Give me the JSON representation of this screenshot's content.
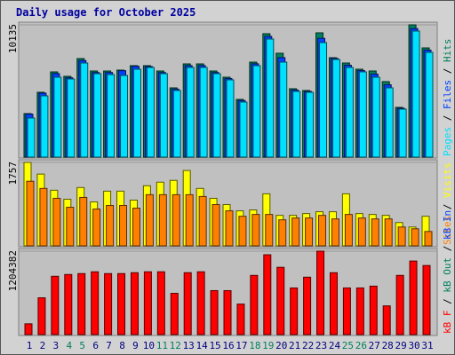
{
  "chart_data": [
    {
      "type": "bar",
      "title": "Daily usage for October 2025",
      "ylim": [
        0,
        10135
      ],
      "yticks": [
        10135
      ],
      "legend_separator": " / ",
      "series": [
        {
          "name": "Hits",
          "color": "#00805c",
          "values": [
            3333,
            4966,
            6530,
            6190,
            7551,
            6598,
            6598,
            6666,
            7006,
            7006,
            6598,
            5306,
            7142,
            7142,
            6598,
            6122,
            4421,
            7278,
            9455,
            7959,
            5238,
            5102,
            9523,
            7618,
            7210,
            6734,
            6598,
            5782,
            3809,
            10135,
            8367
          ]
        },
        {
          "name": "Files",
          "color": "#0040ff",
          "values": [
            3290,
            4900,
            6400,
            6080,
            7400,
            6480,
            6480,
            6620,
            6960,
            6940,
            6480,
            5210,
            7010,
            7010,
            6480,
            6020,
            4330,
            7150,
            9250,
            7620,
            5140,
            5030,
            9100,
            7560,
            7040,
            6630,
            6360,
            5540,
            3740,
            9850,
            8200
          ]
        },
        {
          "name": "Pages",
          "color": "#00e0ff",
          "values": [
            2993,
            4693,
            6122,
            5986,
            7210,
            6394,
            6326,
            6258,
            6734,
            6870,
            6394,
            5102,
            6870,
            6870,
            6394,
            5918,
            4217,
            7006,
            9047,
            7278,
            5034,
            4966,
            8775,
            7482,
            6870,
            6530,
            6122,
            5306,
            3673,
            9659,
            8027
          ]
        }
      ]
    },
    {
      "type": "bar",
      "ylim": [
        0,
        1757
      ],
      "yticks": [
        1757
      ],
      "legend_separator": " / ",
      "series": [
        {
          "name": "Visits",
          "color": "#ffff00",
          "values": [
            1757,
            1511,
            1171,
            982,
            1228,
            926,
            1152,
            1152,
            963,
            1266,
            1341,
            1379,
            1587,
            1209,
            1001,
            869,
            737,
            756,
            1096,
            642,
            642,
            680,
            718,
            718,
            1096,
            680,
            661,
            642,
            491,
            397,
            623
          ]
        },
        {
          "name": "Sites",
          "color": "#ff8000",
          "values": [
            1360,
            1209,
            1001,
            812,
            1020,
            775,
            850,
            850,
            793,
            1077,
            1077,
            1077,
            1077,
            1039,
            869,
            737,
            623,
            661,
            661,
            548,
            586,
            586,
            642,
            567,
            661,
            586,
            567,
            567,
            397,
            359,
            302
          ]
        }
      ]
    },
    {
      "type": "bar",
      "ylim": [
        0,
        1204382
      ],
      "yticks": [
        1204382
      ],
      "legend_separator": " / ",
      "categories": [
        "1",
        "2",
        "3",
        "4",
        "5",
        "6",
        "7",
        "8",
        "9",
        "10",
        "11",
        "12",
        "13",
        "14",
        "15",
        "16",
        "17",
        "18",
        "19",
        "20",
        "21",
        "22",
        "23",
        "24",
        "25",
        "26",
        "27",
        "28",
        "29",
        "30",
        "31"
      ],
      "category_colors": [
        "#000080",
        "#000080",
        "#000080",
        "#00805c",
        "#00805c",
        "#000080",
        "#000080",
        "#000080",
        "#000080",
        "#000080",
        "#00805c",
        "#00805c",
        "#000080",
        "#000080",
        "#000080",
        "#000080",
        "#000080",
        "#00805c",
        "#00805c",
        "#000080",
        "#000080",
        "#000080",
        "#000080",
        "#000080",
        "#00805c",
        "#00805c",
        "#000080",
        "#000080",
        "#000080",
        "#000080",
        "#000080"
      ],
      "series": [
        {
          "name": "kB F",
          "color": "#ff0000",
          "values": [
            155404,
            530960,
            841767,
            867668,
            880618,
            906518,
            880618,
            880618,
            893568,
            906518,
            906518,
            595710,
            893568,
            906518,
            634566,
            634566,
            440311,
            854718,
            1152581,
            971276,
            673420,
            828817,
            1204382,
            893568,
            673420,
            673420,
            699320,
            414412,
            854718,
            1061926,
            997171
          ]
        }
      ],
      "legend_extra": [
        {
          "name": "kB In",
          "color": "#0040ff"
        },
        {
          "name": "kB Out",
          "color": "#00805c"
        }
      ]
    }
  ]
}
